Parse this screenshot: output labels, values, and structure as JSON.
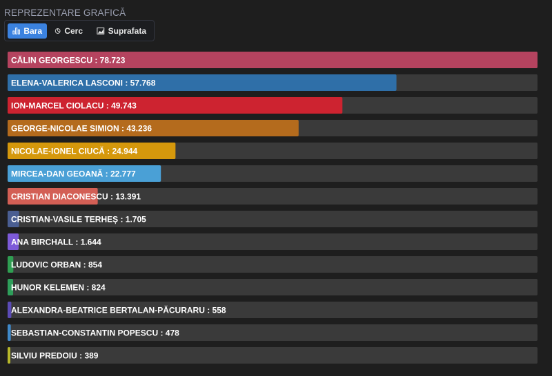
{
  "header": {
    "title": "REPREZENTARE GRAFICĂ",
    "tabs": [
      {
        "label": "Bara",
        "icon": "bar-chart-icon",
        "active": true
      },
      {
        "label": "Cerc",
        "icon": "pie-chart-icon",
        "active": false
      },
      {
        "label": "Suprafata",
        "icon": "area-chart-icon",
        "active": false
      }
    ]
  },
  "colors": {
    "track": "#3a3a3a",
    "active_tab": "#3b82e0"
  },
  "chart_data": {
    "type": "bar",
    "orientation": "horizontal",
    "xlim": [
      0,
      78723
    ],
    "grid": false,
    "legend": "none",
    "bars": [
      {
        "label": "CĂLIN GEORGESCU : 78.723",
        "value": 78723,
        "color": "#b5435f"
      },
      {
        "label": "ELENA-VALERICA LASCONI : 57.768",
        "value": 57768,
        "color": "#2f6fa8"
      },
      {
        "label": "ION-MARCEL CIOLACU : 49.743",
        "value": 49743,
        "color": "#cd2330"
      },
      {
        "label": "GEORGE-NICOLAE SIMION : 43.236",
        "value": 43236,
        "color": "#b46b1d"
      },
      {
        "label": "NICOLAE-IONEL CIUCĂ : 24.944",
        "value": 24944,
        "color": "#d5980c"
      },
      {
        "label": "MIRCEA-DAN GEOANĂ : 22.777",
        "value": 22777,
        "color": "#4aa0d6"
      },
      {
        "label": "CRISTIAN DIACONESCU : 13.391",
        "value": 13391,
        "color": "#d35f55"
      },
      {
        "label": "CRISTIAN-VASILE TERHEȘ : 1.705",
        "value": 1705,
        "color": "#4a5e92"
      },
      {
        "label": "ANA BIRCHALL : 1.644",
        "value": 1644,
        "color": "#7d5ad8"
      },
      {
        "label": "LUDOVIC ORBAN : 854",
        "value": 854,
        "color": "#2f9e52"
      },
      {
        "label": "HUNOR KELEMEN : 824",
        "value": 824,
        "color": "#2e9e5a"
      },
      {
        "label": "ALEXANDRA-BEATRICE BERTALAN-PĂCURARU : 558",
        "value": 558,
        "color": "#5b4bb6"
      },
      {
        "label": "SEBASTIAN-CONSTANTIN POPESCU : 478",
        "value": 478,
        "color": "#3f89c9"
      },
      {
        "label": "SILVIU PREDOIU : 389",
        "value": 389,
        "color": "#b7b82a"
      }
    ]
  }
}
